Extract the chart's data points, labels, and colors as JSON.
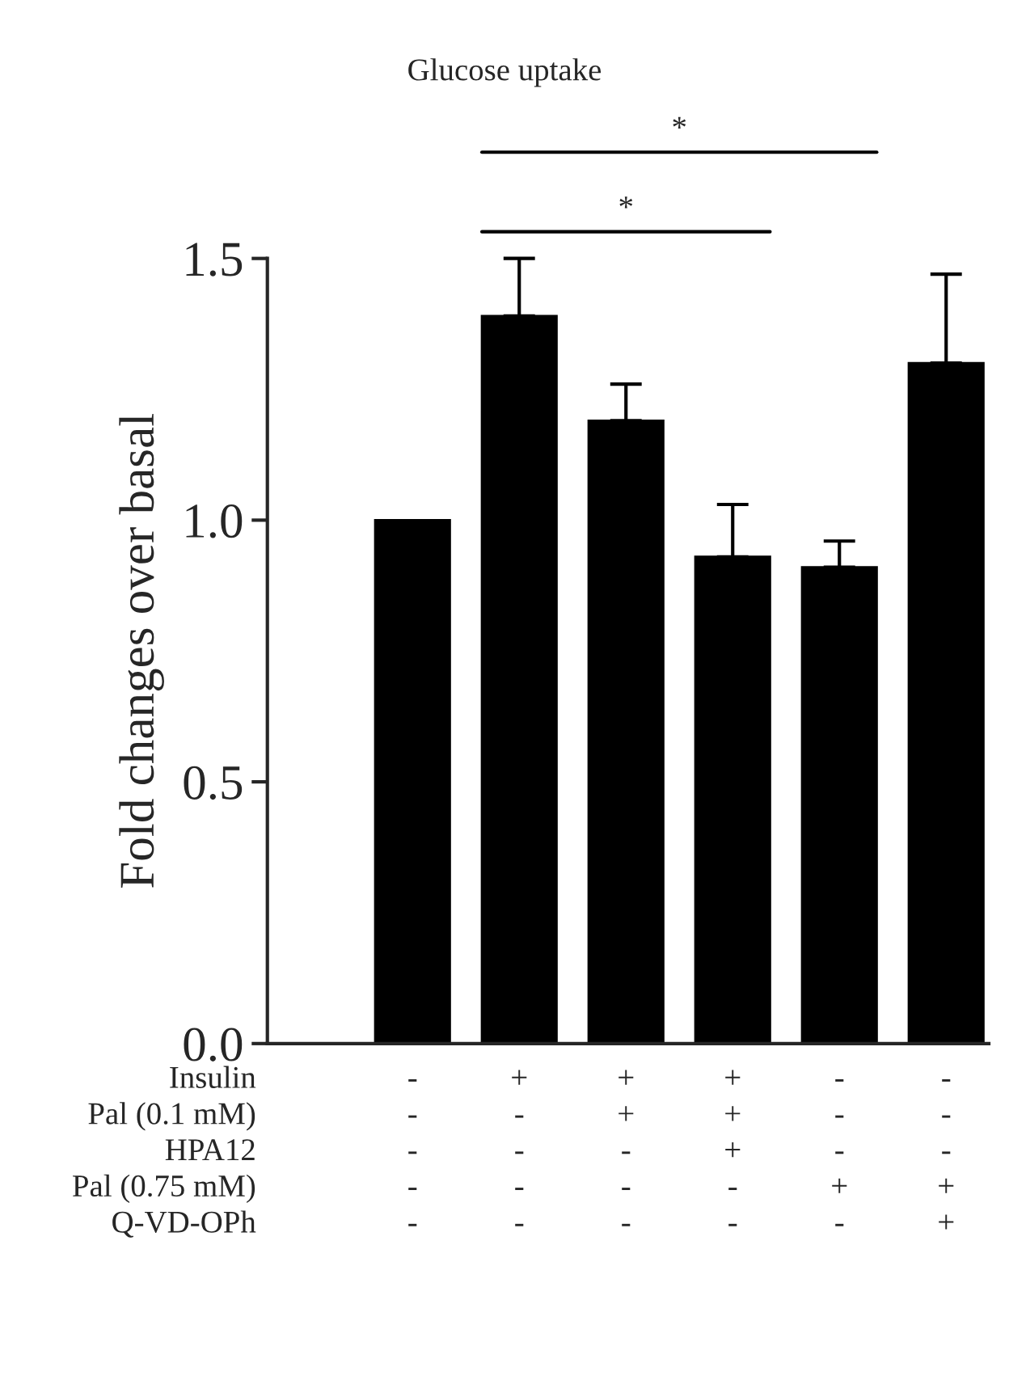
{
  "chart_data": {
    "type": "bar",
    "title": "Glucose uptake",
    "ylabel": "Fold changes over basal",
    "categories": [
      "-\n-\n-\n-\n-",
      "+\n-\n-\n-\n-",
      "+\n+\n-\n-\n-",
      "+\n+\n+\n-\n-",
      "-\n-\n-\n+\n-",
      "-\n-\n-\n+\n+"
    ],
    "series": [
      {
        "color": "#000000",
        "values": [
          1.0,
          1.39,
          1.19,
          0.93,
          0.91,
          1.3
        ],
        "errors": [
          null,
          [
            1.39,
            1.5
          ],
          [
            1.19,
            1.26
          ],
          [
            0.93,
            1.03
          ],
          [
            0.91,
            0.96
          ],
          [
            1.3,
            1.47
          ]
        ]
      }
    ],
    "ylim": [
      0,
      1.5
    ],
    "yticks": [
      {
        "value": 0,
        "label": "0.0"
      },
      {
        "value": 0.5,
        "label": "0.5"
      },
      {
        "value": 1.0,
        "label": "1.0"
      },
      {
        "value": 1.5,
        "label": "1.5"
      }
    ],
    "annotations": [
      "*",
      "*",
      "Insulin",
      "Pal (0.1 mM)",
      "HPA12",
      "Pal (0.75 mM)",
      "Q-VD-OPh"
    ],
    "grid": false,
    "legend": false
  }
}
